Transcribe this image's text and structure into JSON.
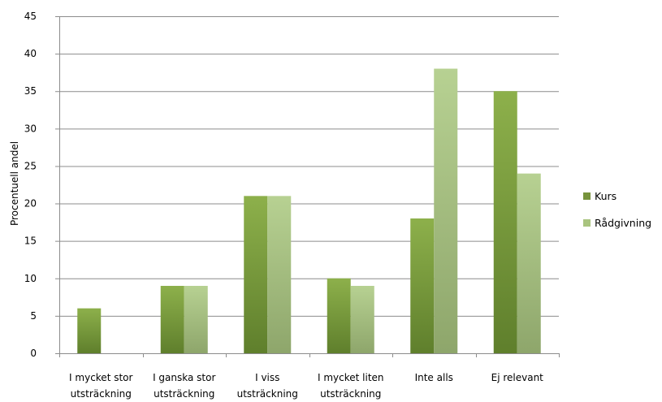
{
  "chart_data": {
    "type": "bar",
    "title": "",
    "xlabel": "",
    "ylabel": "Procentuell andel",
    "ylim": [
      0,
      45
    ],
    "yticks": [
      0,
      5,
      10,
      15,
      20,
      25,
      30,
      35,
      40,
      45
    ],
    "grid": true,
    "legend_position": "right",
    "categories": [
      [
        "I mycket stor",
        "utsträckning"
      ],
      [
        "I ganska stor",
        "utsträckning"
      ],
      [
        "I viss",
        "utsträckning"
      ],
      [
        "I mycket liten",
        "utsträckning"
      ],
      [
        "Inte alls"
      ],
      [
        "Ej relevant"
      ]
    ],
    "series": [
      {
        "name": "Kurs",
        "color": "#77933c",
        "values": [
          6,
          9,
          21,
          10,
          18,
          35
        ]
      },
      {
        "name": "Rådgivning",
        "color": "#a9c47f",
        "values": [
          0,
          9,
          21,
          9,
          38,
          24
        ]
      }
    ]
  }
}
